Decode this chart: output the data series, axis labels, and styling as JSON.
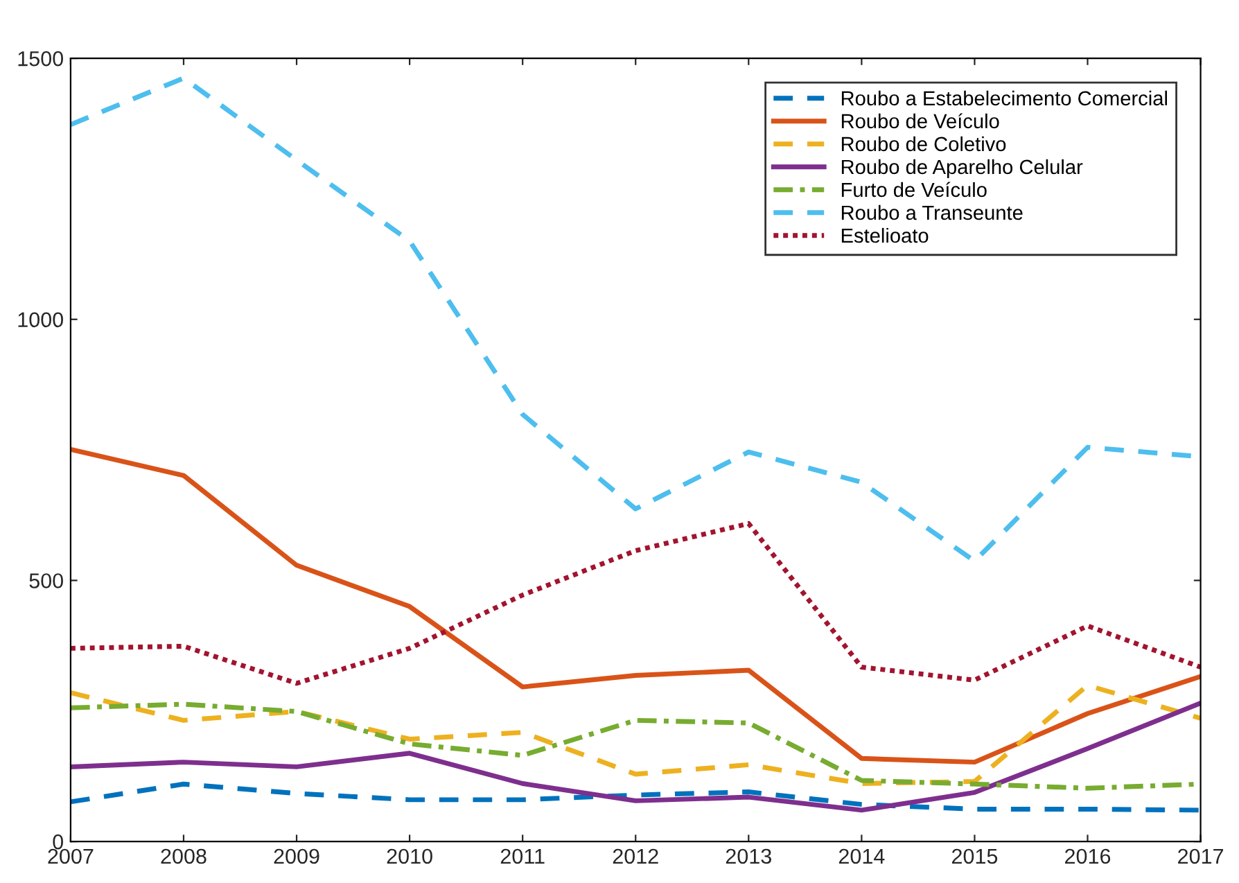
{
  "chart_data": {
    "type": "line",
    "x": [
      2007,
      2008,
      2009,
      2010,
      2011,
      2012,
      2013,
      2014,
      2015,
      2016,
      2017
    ],
    "series": [
      {
        "name": "Roubo a Estabelecimento Comercial",
        "color": "#0072bd",
        "line_style": "dashed",
        "values": [
          76,
          110,
          92,
          80,
          80,
          89,
          95,
          71,
          62,
          62,
          60
        ]
      },
      {
        "name": "Roubo de Veículo",
        "color": "#d95319",
        "line_style": "solid",
        "values": [
          751,
          701,
          529,
          450,
          296,
          318,
          328,
          159,
          152,
          245,
          316
        ]
      },
      {
        "name": "Roubo de Coletivo",
        "color": "#edb120",
        "line_style": "dashed",
        "values": [
          285,
          232,
          249,
          196,
          209,
          129,
          147,
          111,
          115,
          299,
          236
        ]
      },
      {
        "name": "Roubo de Aparelho Celular",
        "color": "#7e2f8e",
        "line_style": "solid",
        "values": [
          143,
          152,
          143,
          169,
          111,
          78,
          85,
          60,
          94,
          178,
          265
        ]
      },
      {
        "name": "Furto de Veículo",
        "color": "#77ac30",
        "line_style": "dashdot",
        "values": [
          256,
          263,
          249,
          187,
          165,
          232,
          227,
          117,
          110,
          102,
          110
        ]
      },
      {
        "name": "Roubo a Transeunte",
        "color": "#4dbeee",
        "line_style": "dashed",
        "values": [
          1373,
          1462,
          1305,
          1150,
          818,
          637,
          746,
          688,
          537,
          755,
          737
        ]
      },
      {
        "name": "Estelioato",
        "color": "#a2142f",
        "line_style": "dotted",
        "values": [
          370,
          374,
          303,
          370,
          472,
          557,
          609,
          334,
          309,
          413,
          334
        ]
      }
    ],
    "xlim": [
      2007,
      2017
    ],
    "xticks": [
      2007,
      2008,
      2009,
      2010,
      2011,
      2012,
      2013,
      2014,
      2015,
      2016,
      2017
    ],
    "ylim": [
      0,
      1500
    ],
    "yticks": [
      0,
      500,
      1000,
      1500
    ],
    "grid": false,
    "legend": "top right",
    "marker": "none"
  }
}
